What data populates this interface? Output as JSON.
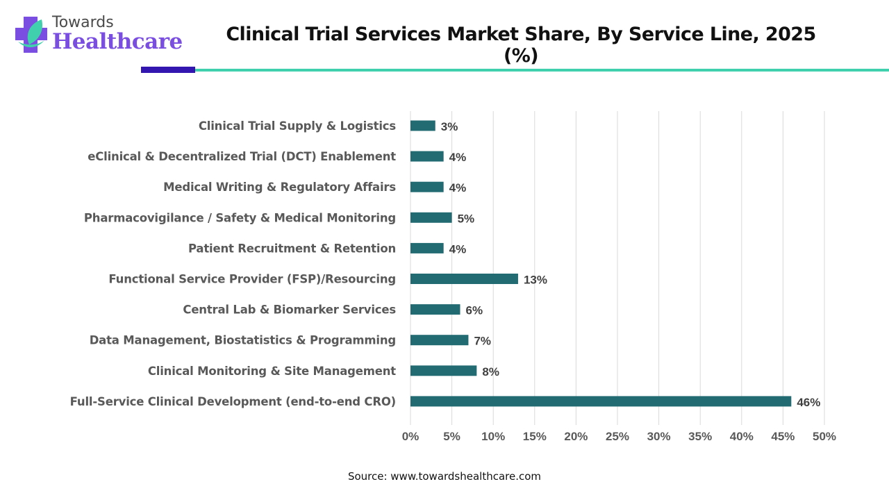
{
  "brand": {
    "name_top": "Towards",
    "name_bottom": "Healthcare",
    "logo_icon": "medical-cross-leaf-icon",
    "colors": {
      "purple": "#7a4ee0",
      "teal": "#40d0ad",
      "navy": "#3315b0"
    }
  },
  "source": "Source: www.towardshealthcare.com",
  "chart_data": {
    "type": "bar",
    "orientation": "horizontal",
    "title": "Clinical Trial Services Market Share, By Service Line, 2025 (%)",
    "xlabel": "",
    "ylabel": "",
    "xlim": [
      0,
      50
    ],
    "grid": true,
    "legend": "none",
    "bar_color": "#236b73",
    "x_ticks": [
      "0%",
      "5%",
      "10%",
      "15%",
      "20%",
      "25%",
      "30%",
      "35%",
      "40%",
      "45%",
      "50%"
    ],
    "categories": [
      "Clinical Trial Supply & Logistics",
      "eClinical & Decentralized Trial (DCT) Enablement",
      "Medical Writing & Regulatory Affairs",
      "Pharmacovigilance / Safety & Medical Monitoring",
      "Patient Recruitment & Retention",
      "Functional Service Provider (FSP)/Resourcing",
      "Central Lab & Biomarker Services",
      "Data Management, Biostatistics & Programming",
      "Clinical Monitoring & Site Management",
      "Full-Service Clinical Development (end-to-end CRO)"
    ],
    "values": [
      3,
      4,
      4,
      5,
      4,
      13,
      6,
      7,
      8,
      46
    ],
    "data_labels": [
      "3%",
      "4%",
      "4%",
      "5%",
      "4%",
      "13%",
      "6%",
      "7%",
      "8%",
      "46%"
    ]
  }
}
